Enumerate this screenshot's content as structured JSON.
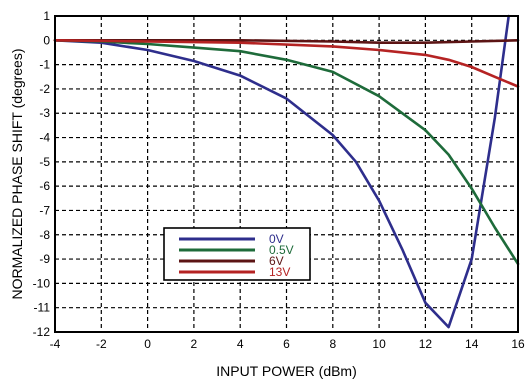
{
  "chart_data": {
    "type": "line",
    "xlabel": "INPUT POWER (dBm)",
    "ylabel": "NORMALIZED PHASE SHIFT (degrees)",
    "xlim": [
      -4,
      16
    ],
    "ylim": [
      -12,
      1
    ],
    "xticks": [
      -4,
      -2,
      0,
      2,
      4,
      6,
      8,
      10,
      12,
      14,
      16
    ],
    "yticks": [
      1,
      0,
      -1,
      -2,
      -3,
      -4,
      -5,
      -6,
      -7,
      -8,
      -9,
      -10,
      -11,
      -12
    ],
    "grid": true,
    "legend_position": "bottom-left",
    "series": [
      {
        "name": "0V",
        "color": "#2e2e8c",
        "x": [
          -4,
          -2,
          0,
          2,
          4,
          6,
          8,
          9,
          10,
          11,
          12,
          13,
          14,
          15,
          15.6
        ],
        "y": [
          0,
          -0.1,
          -0.4,
          -0.85,
          -1.45,
          -2.4,
          -3.9,
          -5.0,
          -6.6,
          -8.6,
          -10.8,
          -11.8,
          -9.0,
          -3.2,
          1.0
        ]
      },
      {
        "name": "0.5V",
        "color": "#1e6b3a",
        "x": [
          -4,
          -2,
          0,
          2,
          4,
          6,
          8,
          10,
          12,
          13,
          14,
          15,
          16
        ],
        "y": [
          0,
          -0.05,
          -0.15,
          -0.3,
          -0.45,
          -0.8,
          -1.3,
          -2.3,
          -3.7,
          -4.7,
          -6.1,
          -7.7,
          -9.2
        ]
      },
      {
        "name": "6V",
        "color": "#5c1414",
        "x": [
          -4,
          0,
          4,
          8,
          10,
          12,
          14,
          16
        ],
        "y": [
          0,
          0,
          0,
          -0.05,
          -0.1,
          -0.1,
          -0.05,
          0
        ]
      },
      {
        "name": "13V",
        "color": "#b52323",
        "x": [
          -4,
          0,
          4,
          8,
          10,
          12,
          13,
          14,
          15,
          16
        ],
        "y": [
          0,
          -0.05,
          -0.1,
          -0.25,
          -0.4,
          -0.6,
          -0.8,
          -1.1,
          -1.5,
          -1.9
        ]
      }
    ]
  }
}
